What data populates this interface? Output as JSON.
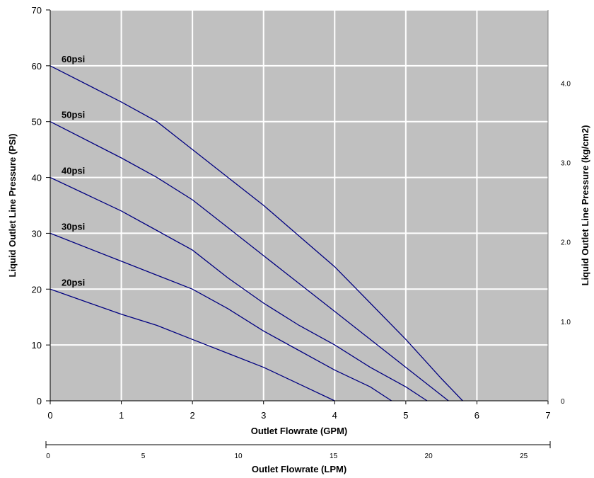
{
  "chart_data": {
    "type": "line",
    "xlabel": "Outlet Flowrate (GPM)",
    "ylabel": "Liquid Outlet Line Pressure (PSI)",
    "y2label": "Liquid Outlet Line Pressure (kg/cm2)",
    "x2label": "Outlet Flowrate (LPM)",
    "xlim": [
      0,
      7
    ],
    "ylim": [
      0,
      70
    ],
    "xticks": [
      "0",
      "1",
      "2",
      "3",
      "4",
      "5",
      "6",
      "7"
    ],
    "yticks": [
      "0",
      "10",
      "20",
      "30",
      "40",
      "50",
      "60",
      "70"
    ],
    "y2ticks": [
      {
        "label": "0",
        "psi": 0
      },
      {
        "label": "1.0",
        "psi": 14.22
      },
      {
        "label": "2.0",
        "psi": 28.45
      },
      {
        "label": "3.0",
        "psi": 42.67
      },
      {
        "label": "4.0",
        "psi": 56.89
      }
    ],
    "x2ticks": [
      {
        "label": "0",
        "lpm": 0
      },
      {
        "label": "5",
        "lpm": 5
      },
      {
        "label": "10",
        "lpm": 10
      },
      {
        "label": "15",
        "lpm": 15
      },
      {
        "label": "20",
        "lpm": 20
      },
      {
        "label": "25",
        "lpm": 25
      }
    ],
    "x2lim": [
      0,
      26.5
    ],
    "grid": true,
    "plot_background": "#c0c0c0",
    "grid_color": "#ffffff",
    "line_color": "#000080",
    "series": [
      {
        "name": "60psi",
        "points": [
          [
            0,
            60
          ],
          [
            1,
            53.5
          ],
          [
            1.5,
            50
          ],
          [
            1.8,
            47
          ],
          [
            2,
            45
          ],
          [
            2.5,
            40
          ],
          [
            3,
            35
          ],
          [
            3.5,
            29.5
          ],
          [
            4,
            24
          ],
          [
            4.5,
            17.5
          ],
          [
            5,
            11
          ],
          [
            5.5,
            4
          ],
          [
            5.8,
            0
          ]
        ]
      },
      {
        "name": "50psi",
        "points": [
          [
            0,
            50
          ],
          [
            1,
            43.5
          ],
          [
            1.5,
            40
          ],
          [
            2,
            36
          ],
          [
            2.5,
            31
          ],
          [
            3,
            26
          ],
          [
            3.5,
            21
          ],
          [
            4,
            16
          ],
          [
            4.5,
            11
          ],
          [
            5,
            6
          ],
          [
            5.6,
            0
          ]
        ]
      },
      {
        "name": "40psi",
        "points": [
          [
            0,
            40
          ],
          [
            1,
            34
          ],
          [
            1.5,
            30.5
          ],
          [
            2,
            27
          ],
          [
            2.5,
            22
          ],
          [
            3,
            17.5
          ],
          [
            3.5,
            13.5
          ],
          [
            4,
            10
          ],
          [
            4.5,
            6
          ],
          [
            5,
            2.5
          ],
          [
            5.3,
            0
          ]
        ]
      },
      {
        "name": "30psi",
        "points": [
          [
            0,
            30
          ],
          [
            1,
            25
          ],
          [
            1.5,
            22.5
          ],
          [
            2,
            20
          ],
          [
            2.5,
            16.5
          ],
          [
            3,
            12.5
          ],
          [
            3.5,
            9
          ],
          [
            4,
            5.5
          ],
          [
            4.5,
            2.5
          ],
          [
            4.8,
            0
          ]
        ]
      },
      {
        "name": "20psi",
        "points": [
          [
            0,
            20
          ],
          [
            1,
            15.5
          ],
          [
            1.5,
            13.5
          ],
          [
            2,
            11
          ],
          [
            2.5,
            8.5
          ],
          [
            3,
            6
          ],
          [
            3.5,
            3
          ],
          [
            4,
            0
          ]
        ]
      }
    ]
  }
}
